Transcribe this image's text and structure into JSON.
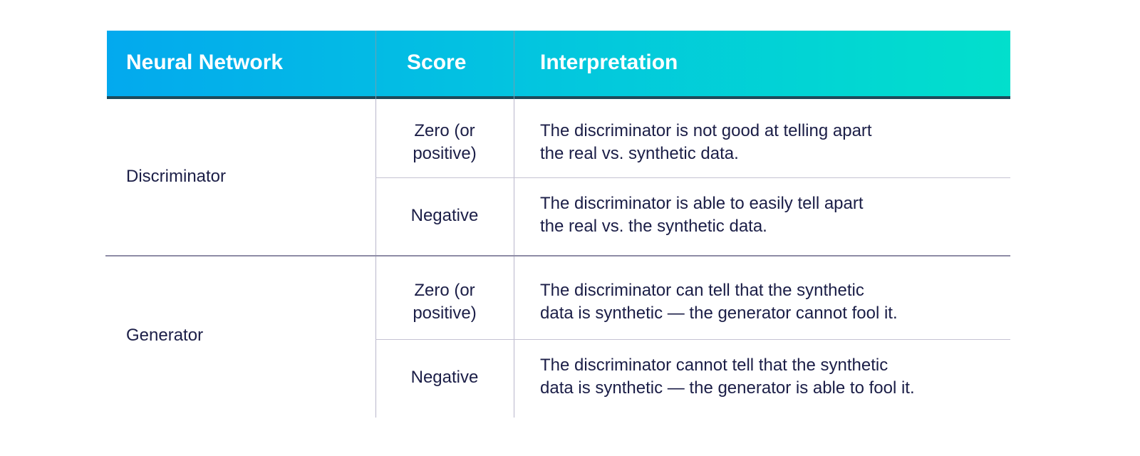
{
  "table": {
    "headers": [
      "Neural Network",
      "Score",
      "Interpretation"
    ],
    "header_gradient": [
      "#03a9ee",
      "#02dfcc"
    ],
    "text_color": "#1b1e47",
    "groups": [
      {
        "network": "Discriminator",
        "rows": [
          {
            "score": "Zero (or positive)",
            "score_lines": [
              "Zero (or",
              "positive)"
            ],
            "interpretation_lines": [
              "The discriminator is not good at telling apart",
              "the real vs. synthetic data."
            ]
          },
          {
            "score": "Negative",
            "score_lines": [
              "Negative"
            ],
            "interpretation_lines": [
              "The discriminator is able to easily tell apart",
              "the real vs. the synthetic data."
            ]
          }
        ]
      },
      {
        "network": "Generator",
        "rows": [
          {
            "score": "Zero (or positive)",
            "score_lines": [
              "Zero (or",
              "positive)"
            ],
            "interpretation_lines": [
              "The discriminator can tell that the synthetic",
              "data is synthetic — the generator cannot fool it."
            ]
          },
          {
            "score": "Negative",
            "score_lines": [
              "Negative"
            ],
            "interpretation_lines": [
              "The discriminator cannot tell that the synthetic",
              "data is synthetic — the generator is able to fool it."
            ]
          }
        ]
      }
    ]
  }
}
